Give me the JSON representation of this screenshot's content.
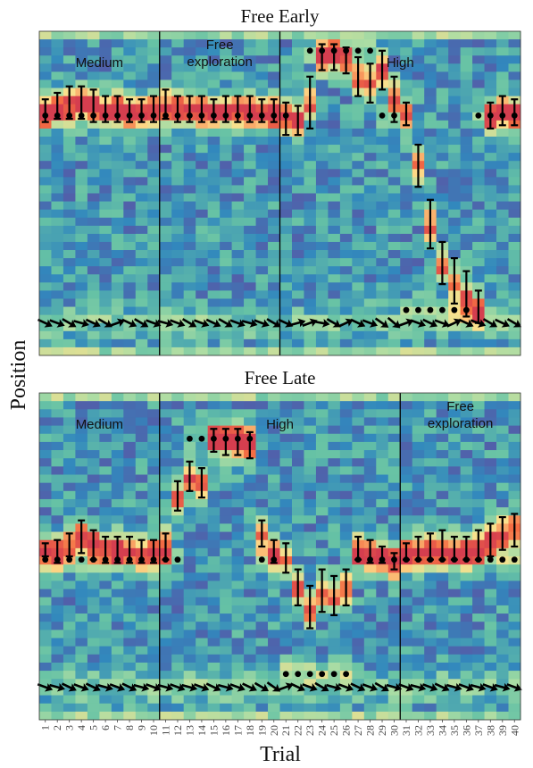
{
  "figure": {
    "ylabel": "Position",
    "xlabel": "Trial",
    "trials": [
      "1",
      "2",
      "3",
      "4",
      "5",
      "6",
      "7",
      "8",
      "9",
      "10",
      "11",
      "12",
      "13",
      "14",
      "15",
      "16",
      "17",
      "18",
      "19",
      "20",
      "21",
      "22",
      "23",
      "24",
      "25",
      "26",
      "27",
      "28",
      "29",
      "30",
      "31",
      "32",
      "33",
      "34",
      "35",
      "36",
      "37",
      "38",
      "39",
      "40"
    ]
  },
  "colors": {
    "heat_low": "#5e4fa2",
    "heat_mid": "#3288bd",
    "heat_teal": "#66c2a5",
    "heat_green": "#abdda4",
    "heat_yellow": "#fee08b",
    "heat_orange": "#f46d43",
    "heat_high": "#d53e4f",
    "marker": "#000000"
  },
  "chart_data": [
    {
      "type": "heatmap",
      "title": "Free Early",
      "xlabel": "Trial",
      "ylabel": "Position",
      "regions": [
        {
          "label": "Medium",
          "trials": [
            1,
            10
          ]
        },
        {
          "label": "Free\nexploration",
          "trials": [
            11,
            20
          ]
        },
        {
          "label": "High",
          "trials": [
            21,
            40
          ]
        }
      ],
      "dividers_after_trial": [
        10,
        20
      ],
      "target_dots": [
        0.74,
        0.74,
        0.74,
        0.74,
        0.74,
        0.74,
        0.74,
        0.74,
        0.74,
        0.74,
        0.74,
        0.74,
        0.74,
        0.74,
        0.74,
        0.74,
        0.74,
        0.74,
        0.74,
        0.74,
        0.74,
        0.74,
        0.94,
        0.94,
        0.94,
        0.94,
        0.94,
        0.94,
        0.74,
        0.74,
        0.14,
        0.14,
        0.14,
        0.14,
        0.14,
        0.14,
        0.74,
        0.74,
        0.74,
        0.74
      ],
      "target_dots_shown": [
        1,
        1,
        1,
        1,
        1,
        1,
        1,
        1,
        1,
        1,
        1,
        1,
        1,
        1,
        1,
        1,
        1,
        1,
        1,
        1,
        1,
        0,
        1,
        1,
        1,
        1,
        1,
        1,
        1,
        1,
        1,
        1,
        1,
        1,
        1,
        1,
        1,
        1,
        1,
        1
      ],
      "mean_position": [
        0.75,
        0.77,
        0.78,
        0.78,
        0.77,
        0.76,
        0.76,
        0.75,
        0.75,
        0.76,
        0.77,
        0.76,
        0.76,
        0.76,
        0.75,
        0.76,
        0.76,
        0.76,
        0.75,
        0.75,
        0.73,
        0.72,
        0.78,
        0.92,
        0.92,
        0.91,
        0.86,
        0.84,
        0.88,
        0.8,
        0.74,
        0.58,
        0.4,
        0.28,
        0.22,
        0.18,
        0.14,
        0.74,
        0.76,
        0.75
      ],
      "err_low": [
        0.72,
        0.73,
        0.73,
        0.73,
        0.72,
        0.72,
        0.72,
        0.72,
        0.72,
        0.72,
        0.73,
        0.72,
        0.72,
        0.72,
        0.72,
        0.72,
        0.72,
        0.72,
        0.72,
        0.72,
        0.68,
        0.68,
        0.7,
        0.88,
        0.88,
        0.87,
        0.8,
        0.78,
        0.82,
        0.72,
        0.71,
        0.52,
        0.33,
        0.22,
        0.16,
        0.12,
        0.1,
        0.7,
        0.71,
        0.71
      ],
      "err_high": [
        0.79,
        0.81,
        0.83,
        0.83,
        0.82,
        0.8,
        0.8,
        0.79,
        0.79,
        0.8,
        0.82,
        0.8,
        0.8,
        0.8,
        0.79,
        0.8,
        0.8,
        0.8,
        0.79,
        0.79,
        0.78,
        0.77,
        0.86,
        0.96,
        0.96,
        0.95,
        0.92,
        0.9,
        0.94,
        0.86,
        0.78,
        0.65,
        0.48,
        0.35,
        0.3,
        0.26,
        0.2,
        0.78,
        0.8,
        0.79
      ],
      "arrow_band": 0.1,
      "arrow_angles_deg": [
        -25,
        -20,
        -30,
        -15,
        -25,
        -30,
        20,
        -25,
        -30,
        -20,
        -15,
        -20,
        -30,
        -20,
        -25,
        -30,
        -20,
        -15,
        -20,
        -30,
        -25,
        15,
        20,
        -10,
        -30,
        25,
        -25,
        -20,
        -35,
        -40,
        20,
        -20,
        -25,
        -20,
        25,
        -25,
        -20,
        -30,
        -25,
        -30
      ]
    },
    {
      "type": "heatmap",
      "title": "Free Late",
      "xlabel": "Trial",
      "ylabel": "Position",
      "regions": [
        {
          "label": "Medium",
          "trials": [
            1,
            10
          ]
        },
        {
          "label": "High",
          "trials": [
            11,
            30
          ]
        },
        {
          "label": "Free\nexploration",
          "trials": [
            31,
            40
          ]
        }
      ],
      "dividers_after_trial": [
        10,
        30
      ],
      "target_dots": [
        0.49,
        0.49,
        0.49,
        0.49,
        0.49,
        0.49,
        0.49,
        0.49,
        0.49,
        0.49,
        0.49,
        0.49,
        0.86,
        0.86,
        0.86,
        0.86,
        0.86,
        0.86,
        0.49,
        0.49,
        0.14,
        0.14,
        0.14,
        0.14,
        0.14,
        0.14,
        0.49,
        0.49,
        0.49,
        0.49,
        0.49,
        0.49,
        0.49,
        0.49,
        0.49,
        0.49,
        0.49,
        0.49,
        0.49,
        0.49
      ],
      "target_dots_shown": [
        1,
        1,
        1,
        1,
        1,
        1,
        1,
        1,
        1,
        1,
        1,
        1,
        1,
        1,
        1,
        1,
        1,
        1,
        1,
        1,
        1,
        1,
        1,
        1,
        1,
        1,
        1,
        1,
        1,
        1,
        1,
        1,
        1,
        1,
        1,
        1,
        1,
        1,
        1,
        1
      ],
      "mean_position": [
        0.52,
        0.51,
        0.53,
        0.56,
        0.54,
        0.52,
        0.52,
        0.52,
        0.51,
        0.51,
        0.53,
        0.68,
        0.74,
        0.72,
        0.86,
        0.85,
        0.85,
        0.84,
        0.57,
        0.51,
        0.49,
        0.4,
        0.34,
        0.39,
        0.38,
        0.4,
        0.52,
        0.51,
        0.5,
        0.48,
        0.51,
        0.52,
        0.53,
        0.53,
        0.52,
        0.52,
        0.53,
        0.55,
        0.57,
        0.58
      ],
      "err_low": [
        0.5,
        0.48,
        0.5,
        0.51,
        0.49,
        0.48,
        0.48,
        0.48,
        0.48,
        0.48,
        0.49,
        0.64,
        0.7,
        0.68,
        0.82,
        0.81,
        0.81,
        0.8,
        0.53,
        0.48,
        0.45,
        0.35,
        0.28,
        0.33,
        0.32,
        0.35,
        0.49,
        0.48,
        0.48,
        0.46,
        0.49,
        0.49,
        0.49,
        0.49,
        0.49,
        0.49,
        0.49,
        0.5,
        0.52,
        0.53
      ],
      "err_high": [
        0.54,
        0.55,
        0.57,
        0.61,
        0.58,
        0.56,
        0.56,
        0.56,
        0.55,
        0.55,
        0.57,
        0.73,
        0.79,
        0.77,
        0.89,
        0.89,
        0.89,
        0.88,
        0.61,
        0.55,
        0.54,
        0.46,
        0.41,
        0.46,
        0.44,
        0.46,
        0.56,
        0.55,
        0.53,
        0.51,
        0.54,
        0.56,
        0.57,
        0.58,
        0.56,
        0.56,
        0.58,
        0.6,
        0.62,
        0.63
      ],
      "arrow_band": 0.1,
      "arrow_angles_deg": [
        -20,
        -15,
        -25,
        -20,
        -25,
        -15,
        -20,
        -25,
        -15,
        -20,
        -15,
        -20,
        -15,
        -20,
        -25,
        -15,
        -20,
        -25,
        -30,
        -35,
        20,
        -25,
        -20,
        -30,
        -15,
        -20,
        -25,
        -20,
        -30,
        -15,
        -20,
        -15,
        -20,
        -25,
        -15,
        -20,
        -15,
        -20,
        -15,
        -20
      ]
    }
  ]
}
